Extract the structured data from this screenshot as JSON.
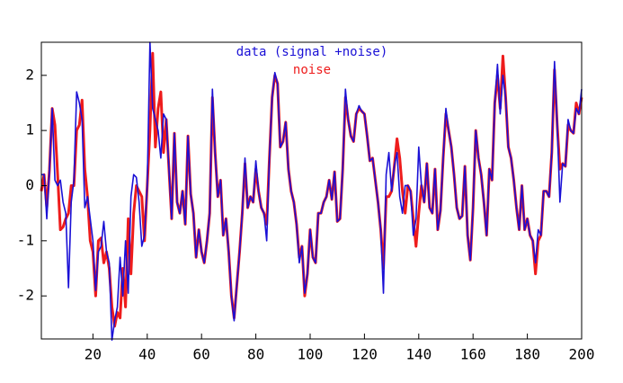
{
  "chart_data": {
    "type": "line",
    "x": [
      1,
      2,
      3,
      4,
      5,
      6,
      7,
      8,
      9,
      10,
      11,
      12,
      13,
      14,
      15,
      16,
      17,
      18,
      19,
      20,
      21,
      22,
      23,
      24,
      25,
      26,
      27,
      28,
      29,
      30,
      31,
      32,
      33,
      34,
      35,
      36,
      37,
      38,
      39,
      40,
      41,
      42,
      43,
      44,
      45,
      46,
      47,
      48,
      49,
      50,
      51,
      52,
      53,
      54,
      55,
      56,
      57,
      58,
      59,
      60,
      61,
      62,
      63,
      64,
      65,
      66,
      67,
      68,
      69,
      70,
      71,
      72,
      73,
      74,
      75,
      76,
      77,
      78,
      79,
      80,
      81,
      82,
      83,
      84,
      85,
      86,
      87,
      88,
      89,
      90,
      91,
      92,
      93,
      94,
      95,
      96,
      97,
      98,
      99,
      100,
      101,
      102,
      103,
      104,
      105,
      106,
      107,
      108,
      109,
      110,
      111,
      112,
      113,
      114,
      115,
      116,
      117,
      118,
      119,
      120,
      121,
      122,
      123,
      124,
      125,
      126,
      127,
      128,
      129,
      130,
      131,
      132,
      133,
      134,
      135,
      136,
      137,
      138,
      139,
      140,
      141,
      142,
      143,
      144,
      145,
      146,
      147,
      148,
      149,
      150,
      151,
      152,
      153,
      154,
      155,
      156,
      157,
      158,
      159,
      160,
      161,
      162,
      163,
      164,
      165,
      166,
      167,
      168,
      169,
      170,
      171,
      172,
      173,
      174,
      175,
      176,
      177,
      178,
      179,
      180,
      181,
      182,
      183,
      184,
      185,
      186,
      187,
      188,
      189,
      190,
      191,
      192,
      193,
      194,
      195,
      196,
      197,
      198,
      199,
      200
    ],
    "series": [
      {
        "name": "data (signal +noise)",
        "color": "#1a10d6",
        "values": [
          0.2,
          0.2,
          -0.6,
          0.3,
          1.4,
          0.1,
          0.0,
          0.1,
          -0.3,
          -0.5,
          -1.85,
          -0.3,
          0.1,
          1.7,
          1.5,
          1.2,
          -0.4,
          -0.2,
          -0.6,
          -1.0,
          -1.9,
          -1.2,
          -1.1,
          -0.65,
          -1.2,
          -1.4,
          -2.8,
          -2.45,
          -2.2,
          -1.3,
          -2.0,
          -1.0,
          -1.95,
          -0.2,
          0.2,
          0.15,
          -0.3,
          -1.1,
          -0.9,
          0.0,
          2.6,
          1.4,
          1.2,
          1.0,
          0.5,
          1.3,
          1.2,
          0.3,
          -0.6,
          0.95,
          -0.3,
          -0.5,
          -0.1,
          -0.7,
          0.9,
          -0.15,
          -0.5,
          -1.3,
          -0.8,
          -1.2,
          -1.4,
          -1.0,
          -0.5,
          1.75,
          0.6,
          -0.2,
          0.1,
          -0.9,
          -0.6,
          -1.2,
          -2.0,
          -2.45,
          -1.8,
          -1.2,
          -0.5,
          0.5,
          -0.4,
          -0.2,
          -0.3,
          0.45,
          -0.1,
          -0.4,
          -0.5,
          -1.0,
          0.5,
          1.6,
          2.05,
          1.85,
          0.7,
          0.8,
          1.15,
          0.3,
          -0.1,
          -0.3,
          -0.7,
          -1.4,
          -1.1,
          -1.95,
          -1.6,
          -0.8,
          -1.3,
          -1.4,
          -0.5,
          -0.5,
          -0.3,
          -0.2,
          0.1,
          -0.25,
          0.25,
          -0.65,
          -0.6,
          0.3,
          1.75,
          1.2,
          0.9,
          0.8,
          1.3,
          1.45,
          1.35,
          1.3,
          0.9,
          0.45,
          0.5,
          0.1,
          -0.3,
          -0.8,
          -1.95,
          0.2,
          0.6,
          -0.1,
          0.35,
          0.6,
          -0.2,
          -0.5,
          0.0,
          0.0,
          -0.1,
          -0.9,
          -0.6,
          0.7,
          0.0,
          -0.3,
          0.4,
          -0.4,
          -0.5,
          0.3,
          -0.8,
          -0.45,
          0.5,
          1.4,
          1.0,
          0.7,
          0.2,
          -0.4,
          -0.6,
          -0.55,
          0.35,
          -0.9,
          -1.35,
          -0.4,
          1.0,
          0.5,
          0.2,
          -0.3,
          -0.9,
          0.3,
          0.1,
          1.5,
          2.2,
          1.3,
          2.0,
          1.6,
          0.7,
          0.5,
          0.1,
          -0.4,
          -0.8,
          0.0,
          -0.8,
          -0.6,
          -0.9,
          -1.0,
          -1.4,
          -0.8,
          -0.9,
          -0.1,
          -0.1,
          -0.2,
          0.6,
          2.25,
          1.1,
          -0.3,
          0.4,
          0.35,
          1.2,
          1.0,
          0.95,
          1.4,
          1.3,
          1.75
        ]
      },
      {
        "name": "noise",
        "color": "#ee1c1c",
        "values": [
          -0.1,
          0.2,
          -0.4,
          0.3,
          1.4,
          1.1,
          0.2,
          -0.8,
          -0.75,
          -0.6,
          -0.5,
          0.0,
          0.0,
          1.0,
          1.1,
          1.55,
          0.3,
          -0.2,
          -1.0,
          -1.2,
          -2.0,
          -1.0,
          -0.95,
          -1.4,
          -1.2,
          -1.5,
          -2.2,
          -2.55,
          -2.3,
          -2.4,
          -1.5,
          -2.2,
          -0.6,
          -1.6,
          -0.5,
          0.0,
          -0.1,
          -0.2,
          -1.0,
          0.0,
          1.0,
          2.4,
          0.7,
          1.4,
          1.7,
          0.6,
          1.2,
          0.3,
          -0.6,
          0.95,
          -0.3,
          -0.5,
          -0.1,
          -0.7,
          0.9,
          -0.15,
          -0.5,
          -1.3,
          -0.8,
          -1.2,
          -1.4,
          -1.0,
          -0.5,
          1.6,
          0.6,
          -0.2,
          0.1,
          -0.9,
          -0.6,
          -1.2,
          -2.0,
          -2.4,
          -1.8,
          -1.2,
          -0.5,
          0.4,
          -0.4,
          -0.2,
          -0.3,
          0.3,
          -0.1,
          -0.4,
          -0.5,
          -0.7,
          0.5,
          1.6,
          2.0,
          1.85,
          0.7,
          0.8,
          1.15,
          0.3,
          -0.1,
          -0.3,
          -0.7,
          -1.3,
          -1.1,
          -2.0,
          -1.6,
          -0.8,
          -1.3,
          -1.4,
          -0.5,
          -0.5,
          -0.3,
          -0.2,
          0.1,
          -0.25,
          0.25,
          -0.65,
          -0.6,
          0.3,
          1.6,
          1.2,
          0.9,
          0.8,
          1.3,
          1.4,
          1.35,
          1.3,
          0.9,
          0.45,
          0.5,
          0.1,
          -0.3,
          -0.8,
          -1.5,
          -0.2,
          -0.2,
          -0.1,
          0.35,
          0.85,
          0.5,
          -0.1,
          -0.5,
          0.0,
          -0.1,
          -0.6,
          -1.1,
          -0.5,
          0.0,
          -0.3,
          0.4,
          -0.4,
          -0.5,
          0.3,
          -0.8,
          -0.45,
          0.5,
          1.3,
          1.0,
          0.7,
          0.2,
          -0.4,
          -0.6,
          -0.55,
          0.35,
          -0.9,
          -1.35,
          -0.4,
          1.0,
          0.5,
          0.2,
          -0.3,
          -0.9,
          0.3,
          0.1,
          1.5,
          2.0,
          1.4,
          2.35,
          1.6,
          0.7,
          0.5,
          0.1,
          -0.4,
          -0.8,
          0.0,
          -0.8,
          -0.6,
          -0.9,
          -1.0,
          -1.6,
          -1.0,
          -0.9,
          -0.1,
          -0.1,
          -0.2,
          0.6,
          2.1,
          1.1,
          0.3,
          0.4,
          0.35,
          1.1,
          1.0,
          0.95,
          1.5,
          1.3,
          1.6
        ]
      }
    ],
    "xlim": [
      1,
      200
    ],
    "ylim": [
      -2.78,
      2.6
    ],
    "xticks": [
      20,
      40,
      60,
      80,
      100,
      120,
      140,
      160,
      180,
      200
    ],
    "yticks": [
      -2,
      -1,
      0,
      1,
      2
    ]
  }
}
